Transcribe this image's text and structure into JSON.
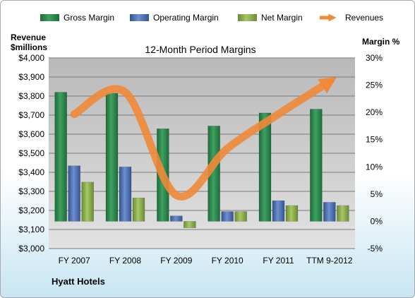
{
  "chart_data": {
    "type": "bar",
    "title": "12-Month Period Margins",
    "company": "Hyatt Hotels",
    "left_axis_label": [
      "Revenue",
      "$millions"
    ],
    "right_axis_label": "Margin %",
    "categories": [
      "FY 2007",
      "FY 2008",
      "FY 2009",
      "FY 2010",
      "FY 2011",
      "TTM 9-2012"
    ],
    "left_axis": {
      "range": [
        3000,
        4000
      ],
      "ticks": [
        "$3,000",
        "$3,100",
        "$3,200",
        "$3,300",
        "$3,400",
        "$3,500",
        "$3,600",
        "$3,700",
        "$3,800",
        "$3,900",
        "$4,000"
      ]
    },
    "right_axis": {
      "range": [
        -5,
        30
      ],
      "ticks": [
        "-5%",
        "0%",
        "5%",
        "10%",
        "15%",
        "20%",
        "25%",
        "30%"
      ]
    },
    "series": [
      {
        "name": "Gross Margin",
        "type": "bar",
        "axis": "right",
        "color": "#2e8b4f",
        "values": [
          23.7,
          23.5,
          17.0,
          17.5,
          19.9,
          20.6
        ]
      },
      {
        "name": "Operating Margin",
        "type": "bar",
        "axis": "right",
        "color": "#4a6fb5",
        "values": [
          10.2,
          10.0,
          1.0,
          1.8,
          3.8,
          3.5
        ]
      },
      {
        "name": "Net Margin",
        "type": "bar",
        "axis": "right",
        "color": "#8db04e",
        "values": [
          7.2,
          4.3,
          -1.2,
          1.8,
          2.9,
          2.9
        ]
      },
      {
        "name": "Revenues",
        "type": "line",
        "axis": "left",
        "color": "#ef8a3a",
        "values": [
          3705,
          3820,
          3280,
          3525,
          3705,
          3875
        ]
      }
    ],
    "legend": {
      "placement": "top"
    },
    "grid": true
  }
}
